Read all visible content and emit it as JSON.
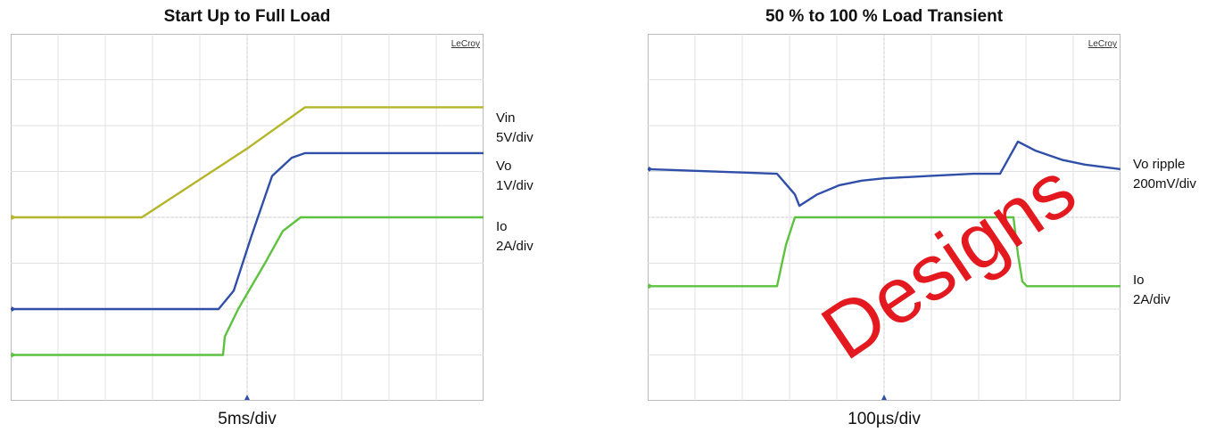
{
  "chart_data": [
    {
      "type": "line",
      "title": "Start Up to Full Load",
      "brand": "LeCroy",
      "time_div": "5ms/div",
      "grid": true,
      "xlim": [
        -26.5,
        26.5
      ],
      "ylim": [
        -4,
        4
      ],
      "series": [
        {
          "name": "Vin",
          "scale": "5V/div",
          "color": "#b5b52a",
          "x": [
            -26.5,
            -11.8,
            0,
            6.5,
            26.5
          ],
          "y": [
            0,
            0,
            1.5,
            2.4,
            2.4
          ]
        },
        {
          "name": "Vo",
          "scale": "1V/div",
          "color": "#2f4fa8",
          "x": [
            -26.5,
            -3.2,
            -1.5,
            0.5,
            2.8,
            5.0,
            6.5,
            26.5
          ],
          "y": [
            -2.0,
            -2.0,
            -1.6,
            -0.4,
            0.9,
            1.3,
            1.4,
            1.4
          ]
        },
        {
          "name": "Io",
          "scale": "2A/div",
          "color": "#5cc240",
          "x": [
            -26.5,
            -2.7,
            -2.5,
            -1.0,
            2.0,
            4.0,
            6.0,
            26.5
          ],
          "y": [
            -3.0,
            -3.0,
            -2.6,
            -2.0,
            -1.0,
            -0.3,
            0,
            0
          ]
        }
      ]
    },
    {
      "type": "line",
      "title": "50 % to 100 % Load Transient",
      "brand": "LeCroy",
      "time_div": "100µs/div",
      "grid": true,
      "xlim": [
        -530,
        530
      ],
      "ylim": [
        -4,
        4
      ],
      "series": [
        {
          "name": "Vo ripple",
          "scale": "200mV/div",
          "color": "#2f4fa8",
          "x": [
            -530,
            -240,
            -200,
            -190,
            -150,
            -100,
            -50,
            0,
            100,
            200,
            260,
            280,
            300,
            340,
            400,
            450,
            530
          ],
          "y": [
            1.05,
            0.95,
            0.5,
            0.25,
            0.5,
            0.7,
            0.8,
            0.85,
            0.9,
            0.95,
            0.95,
            1.3,
            1.65,
            1.45,
            1.25,
            1.15,
            1.05
          ]
        },
        {
          "name": "Io",
          "scale": "2A/div",
          "color": "#5cc240",
          "x": [
            -530,
            -240,
            -220,
            -200,
            290,
            300,
            310,
            320,
            530
          ],
          "y": [
            -1.5,
            -1.5,
            -0.6,
            0,
            0,
            -0.8,
            -1.4,
            -1.5,
            -1.5
          ]
        }
      ]
    }
  ],
  "watermark": "Designs"
}
